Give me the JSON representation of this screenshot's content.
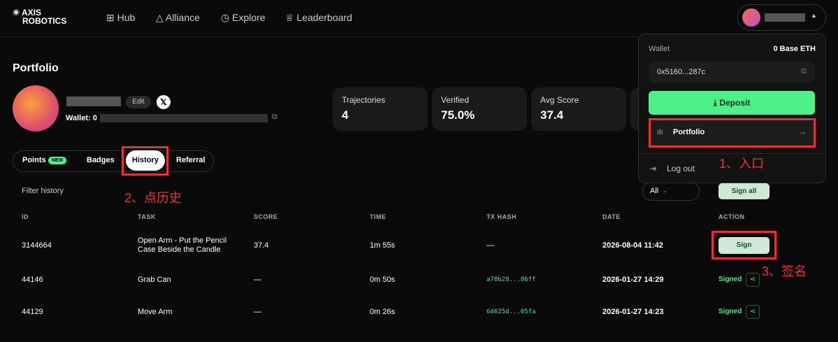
{
  "header": {
    "logo": [
      "AXIS",
      "ROBOTICS"
    ],
    "nav": [
      "Hub",
      "Alliance",
      "Explore",
      "Leaderboard"
    ]
  },
  "profile": {
    "title": "Portfolio",
    "edit": "Edit",
    "wallet": "Wallet: 0"
  },
  "stats": [
    {
      "label": "Trajectories",
      "value": "4"
    },
    {
      "label": "Verified",
      "value": "75.0%"
    },
    {
      "label": "Avg Score",
      "value": "37.4"
    }
  ],
  "tabs": {
    "items": [
      "Points",
      "Badges",
      "History",
      "Referral"
    ],
    "badge": "NEW"
  },
  "filter": {
    "label": "Filter history",
    "select": "All",
    "sign_all": "Sign all"
  },
  "table": {
    "headers": [
      "ID",
      "TASK",
      "SCORE",
      "TIME",
      "TX HASH",
      "DATE",
      "ACTION"
    ],
    "rows": [
      [
        "3144664",
        "Open Arm - Put the Pencil Case Beside the Candle",
        "37.4",
        "1m 55s",
        "—",
        "2026-08-04 11:42",
        "Sign"
      ],
      [
        "44146",
        "Grab Can",
        "—",
        "0m 50s",
        "a70b28...86ff",
        "2026-01-27 14:29",
        "Signed"
      ],
      [
        "44129",
        "Move Arm",
        "—",
        "0m 26s",
        "64625d...05fa",
        "2026-01-27 14:23",
        "Signed"
      ]
    ]
  },
  "dropdown": {
    "wallet_label": "Wallet",
    "balance": "0 Base ETH",
    "address": "0x5160...287c",
    "deposit": "Deposit",
    "portfolio": "Portfolio",
    "logout": "Log out"
  },
  "annotations": [
    "1、入口",
    "2、点历史",
    "3、签名"
  ]
}
